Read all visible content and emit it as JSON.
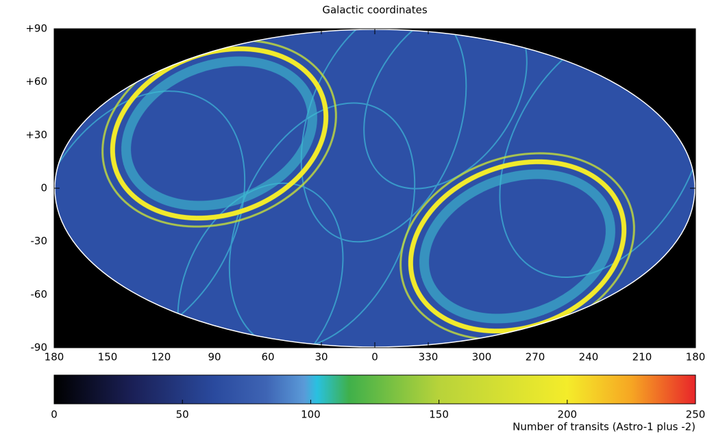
{
  "chart_data": {
    "type": "map",
    "title": "Galactic coordinates",
    "xlim": [
      180,
      -180
    ],
    "xticks": [
      180,
      150,
      120,
      90,
      60,
      30,
      0,
      {
        "value": -30,
        "label": "330"
      },
      {
        "value": -60,
        "label": "300"
      },
      {
        "value": -90,
        "label": "270"
      },
      {
        "value": -120,
        "label": "240"
      },
      {
        "value": -150,
        "label": "210"
      },
      {
        "value": -180,
        "label": "180"
      }
    ],
    "ylim": [
      -90,
      90
    ],
    "yticks": [
      {
        "value": 90,
        "label": "+90"
      },
      {
        "value": 60,
        "label": "+60"
      },
      {
        "value": 30,
        "label": "+30"
      },
      0,
      -30,
      -60,
      -90
    ],
    "colorbar": {
      "lim": [
        0,
        250
      ],
      "ticks": [
        0,
        50,
        100,
        150,
        200,
        250
      ],
      "label": "Number of transits (Astro-1 plus -2)"
    }
  }
}
